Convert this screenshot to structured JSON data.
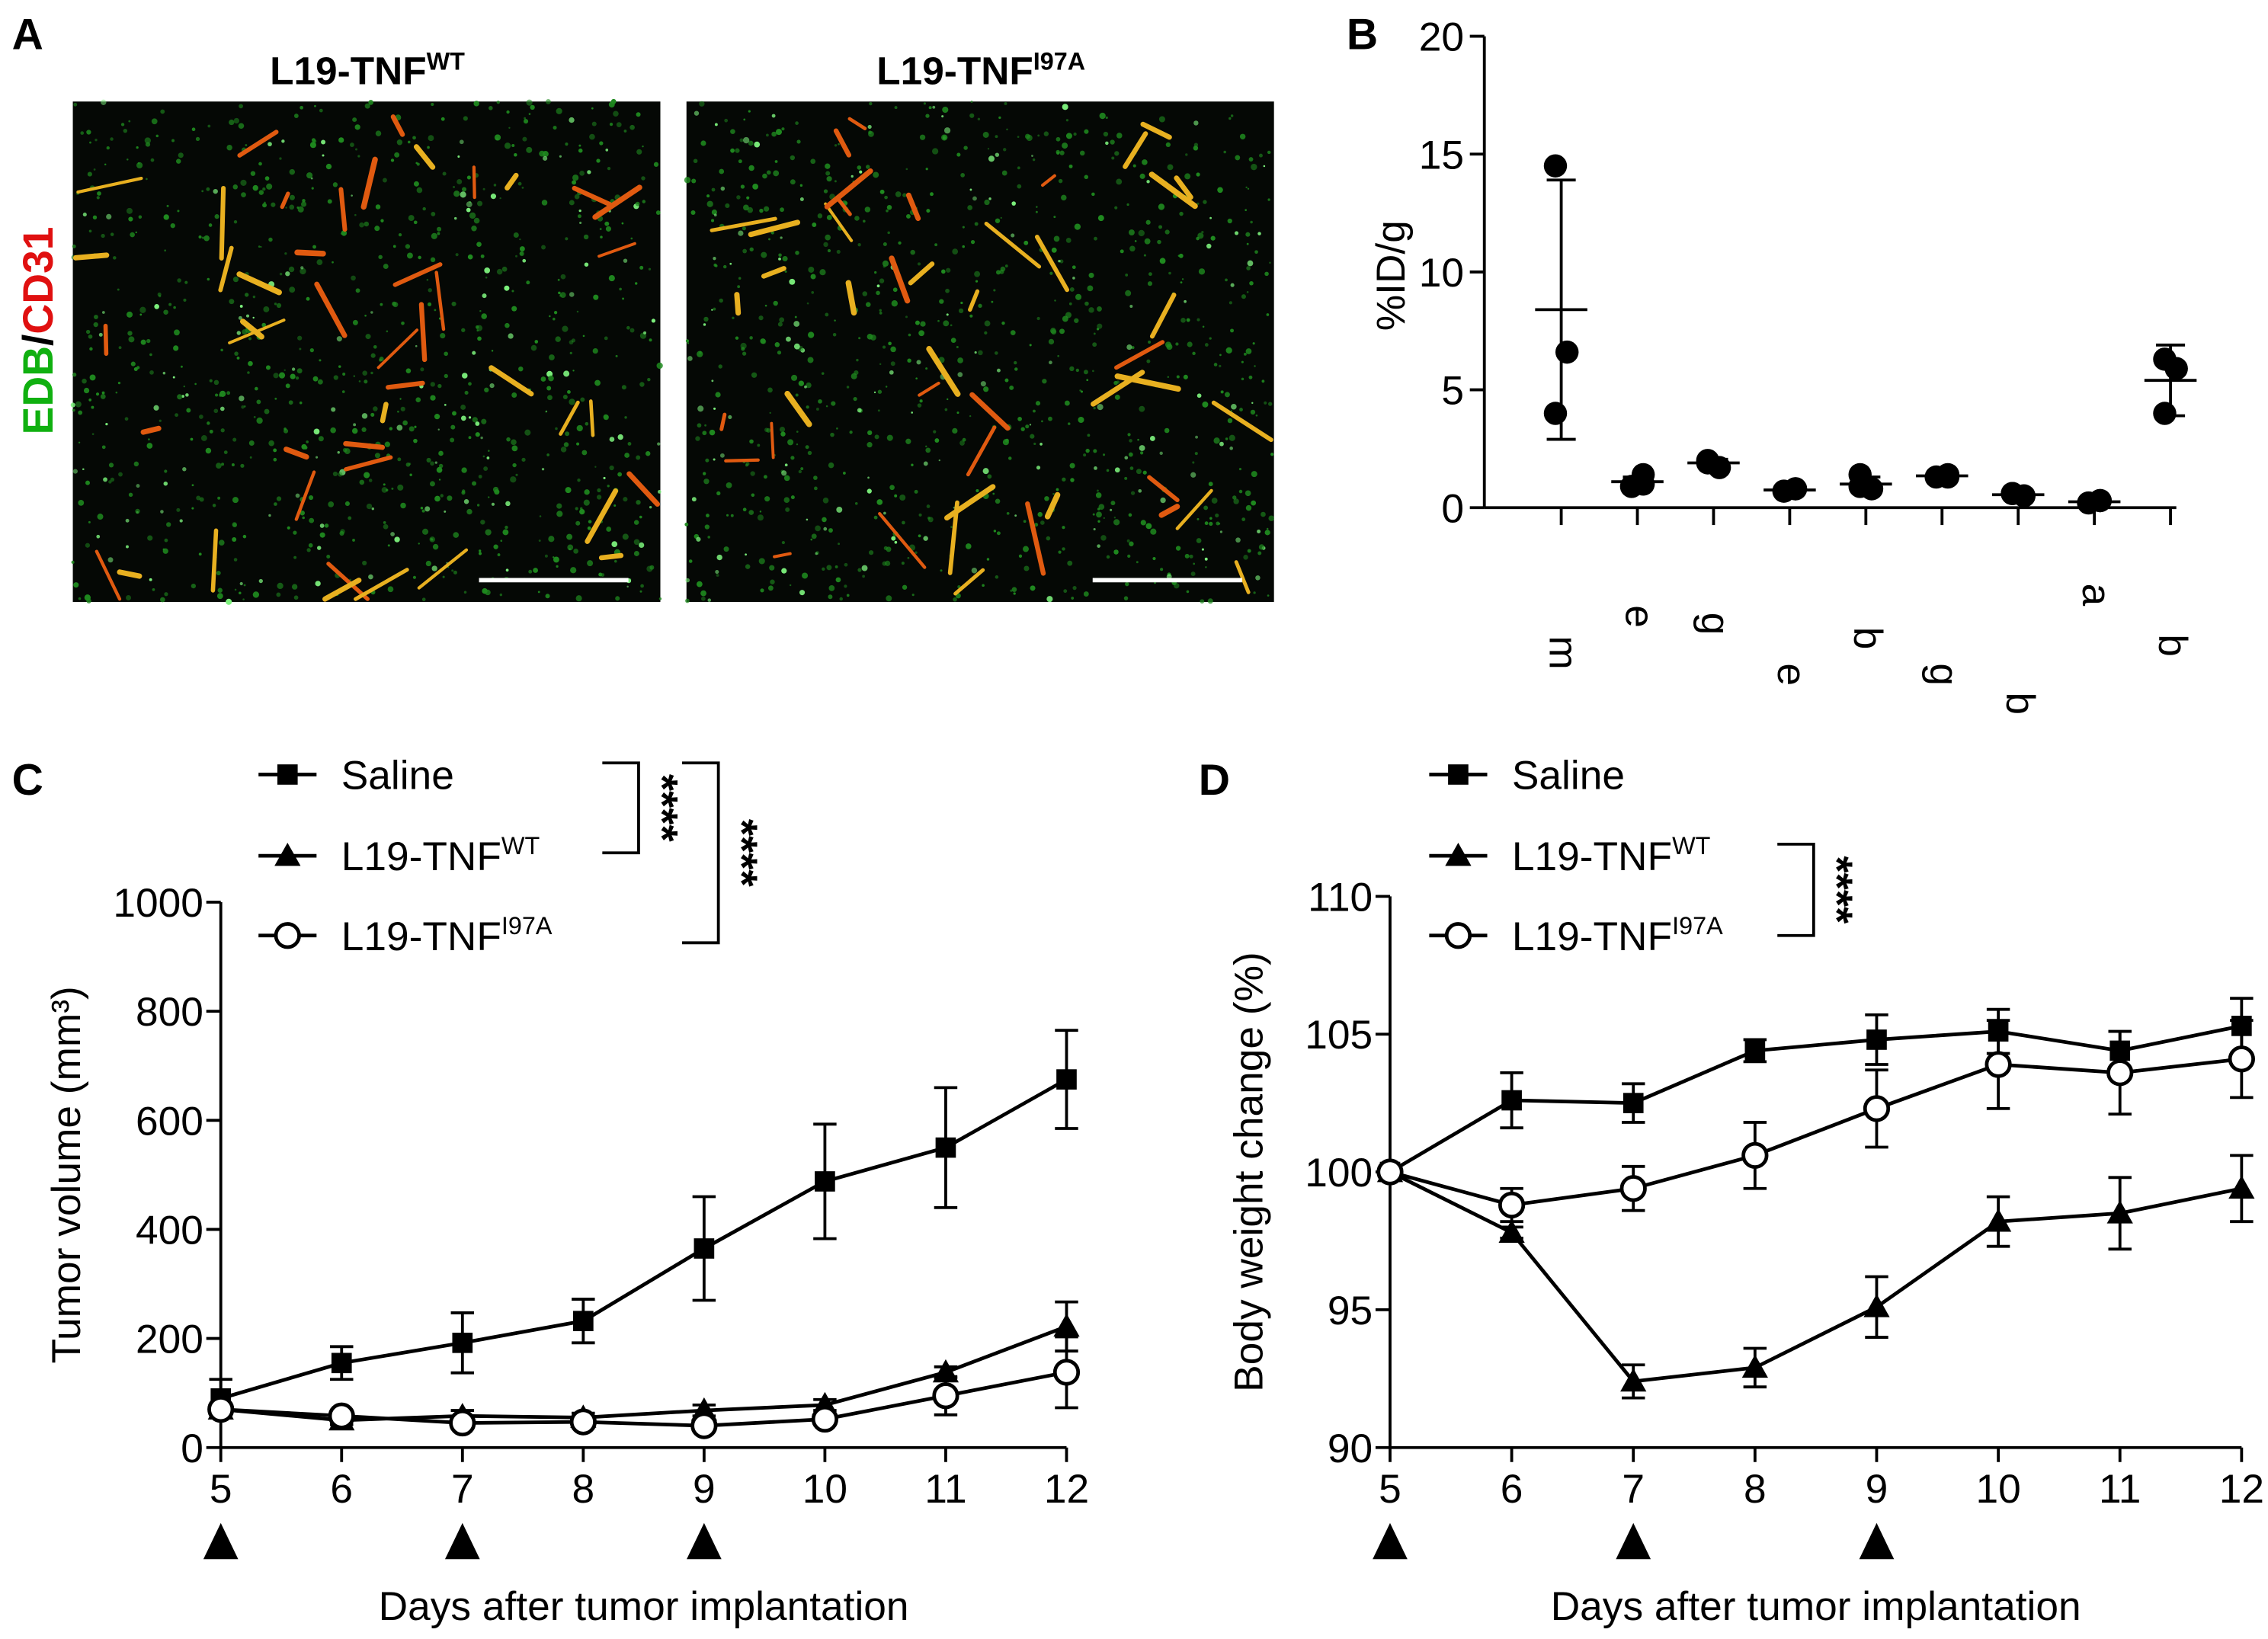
{
  "figure_a": {
    "label": "A",
    "stain": [
      {
        "text": "EDB",
        "color": "#10b010"
      },
      {
        "text": "/",
        "color": "#000000"
      },
      {
        "text": "CD31",
        "color": "#e01010"
      }
    ],
    "images": [
      {
        "title": "L19-TNF",
        "title_sup": "WT"
      },
      {
        "title": "L19-TNF",
        "title_sup": "I97A"
      }
    ]
  },
  "chart_data": [
    {
      "type": "dotplot",
      "label": "B",
      "y_label": "%ID/g",
      "categories": [
        "m",
        "e",
        "g",
        "e",
        "b",
        "g",
        "b",
        "a",
        "b"
      ],
      "points": [
        [
          14.5,
          6.6,
          4.0
        ],
        [
          1.4,
          0.9,
          1.0
        ],
        [
          2.0,
          1.7,
          1.9
        ],
        [
          0.8,
          0.7,
          0.8
        ],
        [
          1.4,
          0.8,
          0.9
        ],
        [
          1.4,
          1.3,
          1.3
        ],
        [
          0.6,
          0.5,
          0.6
        ],
        [
          0.3,
          0.2,
          0.3
        ],
        [
          6.3,
          5.9,
          4.0
        ]
      ],
      "means": [
        8.4,
        1.1,
        1.9,
        0.75,
        1.0,
        1.35,
        0.55,
        0.25,
        5.4
      ],
      "errors": [
        5.5,
        0.2,
        0.15,
        0.05,
        0.3,
        0.05,
        0.05,
        0.05,
        1.5
      ],
      "ylim": [
        0,
        20
      ],
      "yticks": [
        0,
        5,
        10,
        15,
        20
      ],
      "color": "#000000"
    },
    {
      "type": "line",
      "label": "C",
      "x_label": "Days after tumor implantation",
      "y_label": "Tumor volume (mm³)",
      "x": [
        5,
        6,
        7,
        8,
        9,
        10,
        11,
        12
      ],
      "xlim": [
        5,
        12
      ],
      "xticks": [
        5,
        6,
        7,
        8,
        9,
        10,
        11,
        12
      ],
      "ylim": [
        0,
        1000
      ],
      "yticks": [
        0,
        200,
        400,
        600,
        800,
        1000
      ],
      "treatment_days": [
        5,
        7,
        9
      ],
      "annotations": [
        "****",
        "****"
      ],
      "series": [
        {
          "name": "Saline",
          "name_sup": "",
          "marker": "square",
          "color": "#000000",
          "values": [
            90,
            155,
            192,
            232,
            365,
            488,
            550,
            675
          ],
          "errors": [
            35,
            30,
            55,
            40,
            95,
            105,
            110,
            90
          ]
        },
        {
          "name": "L19-TNF",
          "name_sup": "WT",
          "marker": "triangle",
          "color": "#000000",
          "values": [
            70,
            50,
            58,
            55,
            68,
            78,
            138,
            222
          ],
          "errors": [
            10,
            8,
            10,
            8,
            10,
            10,
            10,
            45
          ]
        },
        {
          "name": "L19-TNF",
          "name_sup": "I97A",
          "marker": "open-circle",
          "color": "#000000",
          "values": [
            70,
            58,
            45,
            47,
            40,
            52,
            95,
            138
          ],
          "errors": [
            10,
            10,
            10,
            10,
            8,
            8,
            35,
            65
          ]
        }
      ]
    },
    {
      "type": "line",
      "label": "D",
      "x_label": "Days after tumor implantation",
      "y_label": "Body weight change (%)",
      "x": [
        5,
        6,
        7,
        8,
        9,
        10,
        11,
        12
      ],
      "xlim": [
        5,
        12
      ],
      "xticks": [
        5,
        6,
        7,
        8,
        9,
        10,
        11,
        12
      ],
      "ylim": [
        90,
        110
      ],
      "yticks": [
        90,
        95,
        100,
        105,
        110
      ],
      "treatment_days": [
        5,
        7,
        9
      ],
      "annotations": [
        "****"
      ],
      "series": [
        {
          "name": "Saline",
          "name_sup": "",
          "marker": "square",
          "color": "#000000",
          "values": [
            100,
            102.6,
            102.5,
            104.4,
            104.8,
            105.1,
            104.4,
            105.3
          ],
          "errors": [
            0,
            1.0,
            0.7,
            0.4,
            0.9,
            0.8,
            0.7,
            1.0
          ]
        },
        {
          "name": "L19-TNF",
          "name_sup": "WT",
          "marker": "triangle",
          "color": "#000000",
          "values": [
            100,
            97.8,
            92.4,
            92.9,
            95.1,
            98.2,
            98.5,
            99.4
          ],
          "errors": [
            0,
            0.2,
            0.6,
            0.7,
            1.1,
            0.9,
            1.3,
            1.2
          ]
        },
        {
          "name": "L19-TNF",
          "name_sup": "I97A",
          "marker": "open-circle",
          "color": "#000000",
          "values": [
            100,
            98.8,
            99.4,
            100.6,
            102.3,
            103.9,
            103.6,
            104.1
          ],
          "errors": [
            0,
            0.6,
            0.8,
            1.2,
            1.4,
            1.6,
            1.5,
            1.4
          ]
        }
      ]
    }
  ]
}
